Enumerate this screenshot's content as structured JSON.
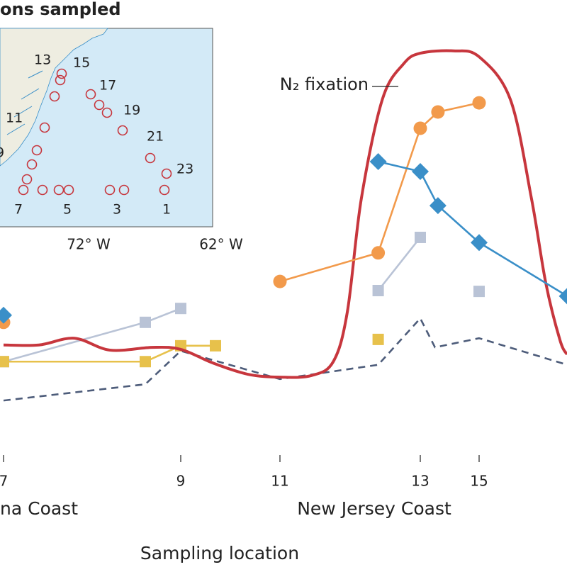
{
  "chart_data": {
    "type": "line",
    "x_title": "Sampling location",
    "region_labels": [
      "na Coast",
      "New Jersey Coast"
    ],
    "annotation": "N₂ fixation",
    "xticks": [
      7,
      9,
      11,
      13,
      15
    ],
    "ylim": [
      0,
      100
    ],
    "series": [
      {
        "color": "#b9c3d6",
        "marker": "square",
        "dash": false,
        "x": [
          7,
          8.6,
          9,
          null,
          12.4,
          13,
          null,
          15
        ],
        "values": [
          19.6,
          29.5,
          33,
          null,
          37.5,
          50.9,
          null,
          37.3
        ]
      },
      {
        "color": "#e7c14b",
        "marker": "square",
        "dash": false,
        "x": [
          7,
          8.6,
          9,
          9.7,
          null,
          12.4
        ],
        "values": [
          19.6,
          19.6,
          23.6,
          23.6,
          null,
          25.2
        ]
      },
      {
        "color": "#4d5c7a",
        "marker": "none",
        "dash": true,
        "x": [
          7,
          8.6,
          9,
          11,
          12.4,
          13,
          13.5,
          15,
          18
        ],
        "values": [
          9.8,
          13.9,
          22.3,
          15.2,
          18.8,
          30.5,
          23.2,
          25.5,
          18.8
        ]
      },
      {
        "color": "#c7363d",
        "marker": "none",
        "dash": false,
        "smooth": true,
        "x": [
          7,
          7.4,
          7.8,
          8.2,
          8.68,
          9,
          9.64,
          10.36,
          11,
          11.45,
          11.76,
          11.96,
          12.16,
          12.46,
          12.76,
          13,
          14.13,
          15,
          16.06,
          16.78,
          17.27,
          17.75,
          17.99
        ],
        "values": [
          23.8,
          23.8,
          25.5,
          22.5,
          23.2,
          22.7,
          19.3,
          16.4,
          15.7,
          16.1,
          19.6,
          32.1,
          60.7,
          85.7,
          94.6,
          97.3,
          97.9,
          96.4,
          85.7,
          60.7,
          39.3,
          25,
          21.4
        ]
      },
      {
        "color": "#f29a4b",
        "marker": "circle",
        "dash": false,
        "x": [
          7,
          null,
          11,
          12.4,
          13,
          13.6,
          15
        ],
        "values": [
          29.5,
          null,
          39.8,
          47,
          78.4,
          82.5,
          84.8
        ]
      },
      {
        "color": "#3a8fc8",
        "marker": "diamond",
        "dash": false,
        "x": [
          7,
          null,
          12.4,
          13,
          13.6,
          15,
          18
        ],
        "values": [
          31.3,
          null,
          70,
          67.5,
          58.9,
          49.6,
          36.1
        ]
      }
    ]
  },
  "inset": {
    "title": "ons sampled",
    "station_labels": [
      "13",
      "15",
      "17",
      "19",
      "21",
      "23",
      "11",
      "9",
      "7",
      "5",
      "3",
      "1"
    ],
    "longitude_labels": [
      "72° W",
      "62° W"
    ]
  }
}
